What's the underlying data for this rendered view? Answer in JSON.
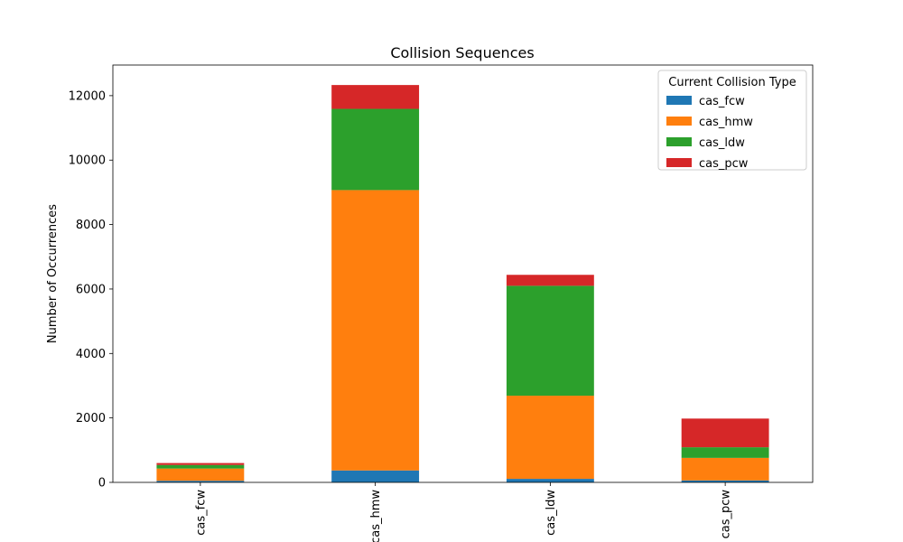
{
  "chart_data": {
    "type": "bar",
    "stacked": true,
    "title": "Collision Sequences",
    "xlabel": "",
    "ylabel": "Number of Occurrences",
    "categories": [
      "cas_fcw",
      "cas_hmw",
      "cas_ldw",
      "cas_pcw"
    ],
    "series": [
      {
        "name": "cas_fcw",
        "color": "#1f77b4",
        "values": [
          50,
          370,
          110,
          60
        ]
      },
      {
        "name": "cas_hmw",
        "color": "#ff7f0e",
        "values": [
          380,
          8700,
          2580,
          700
        ]
      },
      {
        "name": "cas_ldw",
        "color": "#2ca02c",
        "values": [
          110,
          2520,
          3410,
          330
        ]
      },
      {
        "name": "cas_pcw",
        "color": "#d62728",
        "values": [
          60,
          740,
          340,
          890
        ]
      }
    ],
    "ylim": [
      0,
      12950
    ],
    "yticks": [
      0,
      2000,
      4000,
      6000,
      8000,
      10000,
      12000
    ],
    "legend": {
      "title": "Current Collision Type",
      "position": "top-right"
    },
    "grid": false
  }
}
